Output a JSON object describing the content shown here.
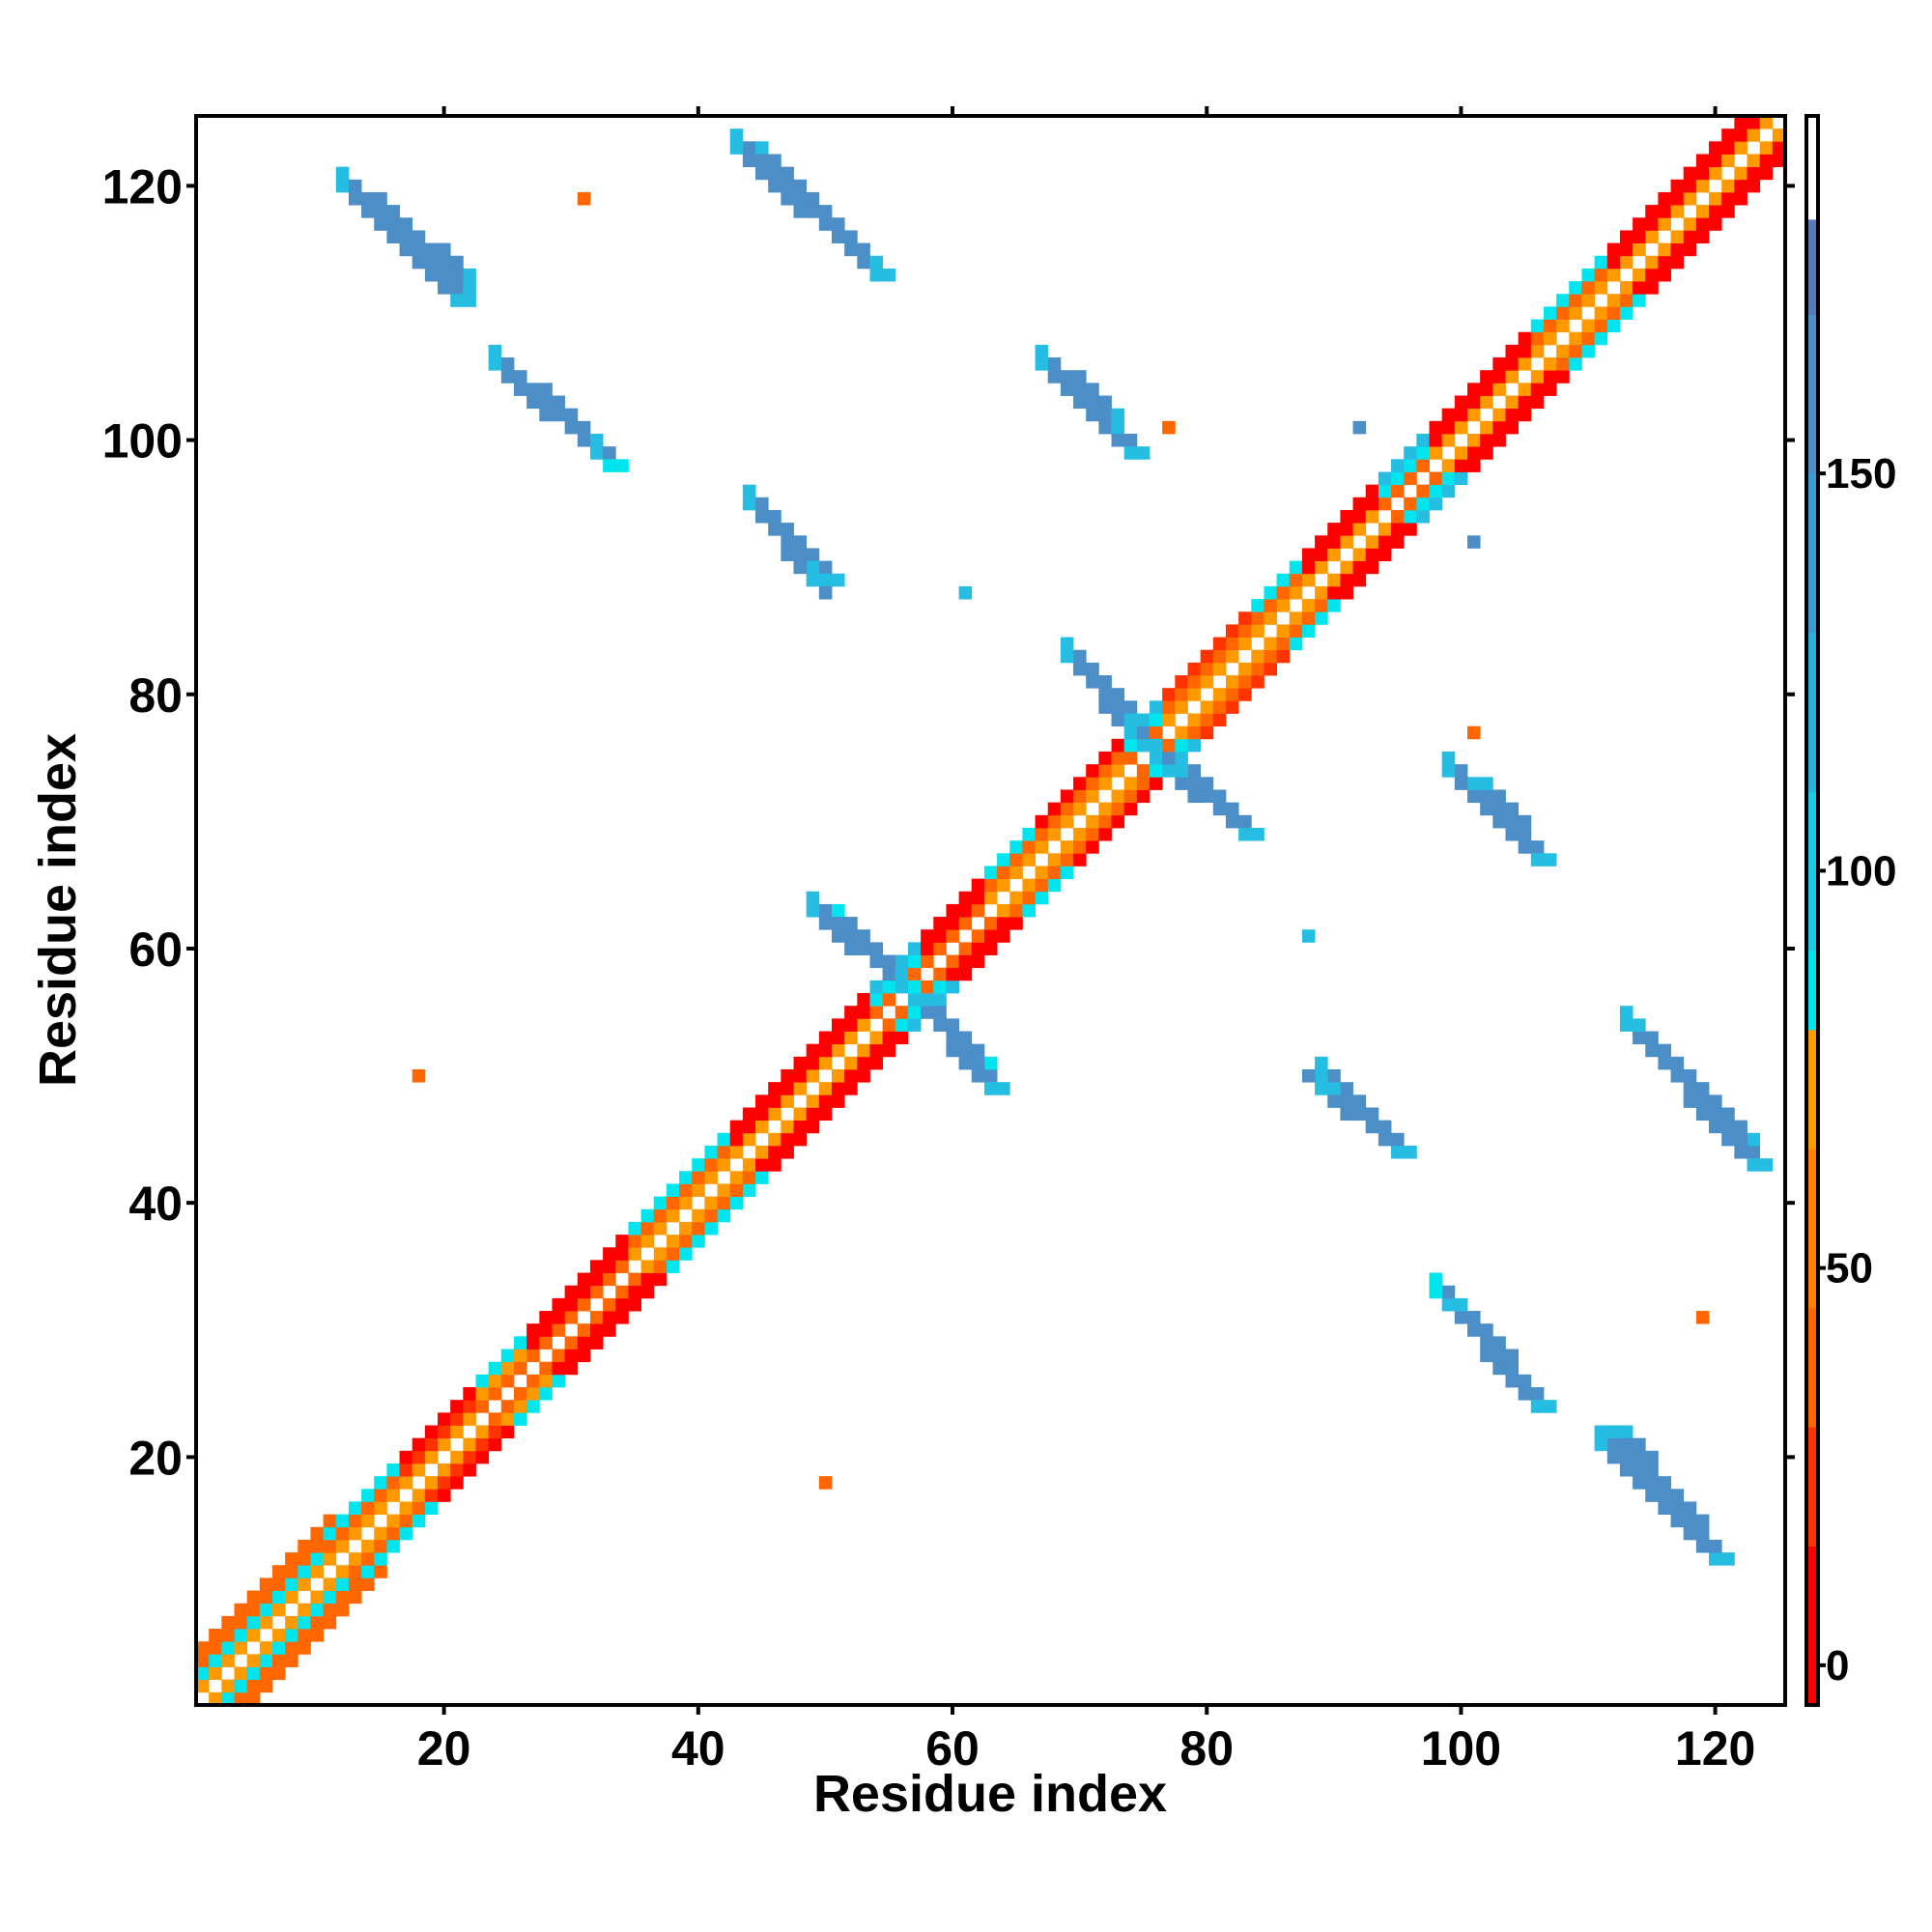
{
  "chart_data": {
    "type": "heatmap",
    "title": "",
    "xlabel": "Residue index",
    "ylabel": "Residue index",
    "xlim": [
      1,
      125
    ],
    "ylim": [
      1,
      125
    ],
    "x_ticks": [
      20,
      40,
      60,
      80,
      100,
      120
    ],
    "y_ticks": [
      20,
      40,
      60,
      80,
      100,
      120
    ],
    "grid": false,
    "legend": "right",
    "colorbar": {
      "ticks": [
        0,
        50,
        100,
        150
      ],
      "range": [
        -5,
        195
      ],
      "bands": [
        {
          "from": -5,
          "to": 15,
          "color": "#ff0000"
        },
        {
          "from": 15,
          "to": 30,
          "color": "#ff3300"
        },
        {
          "from": 30,
          "to": 45,
          "color": "#ff6600"
        },
        {
          "from": 45,
          "to": 65,
          "color": "#ff7f00"
        },
        {
          "from": 65,
          "to": 80,
          "color": "#ff9900"
        },
        {
          "from": 80,
          "to": 90,
          "color": "#00e5ee"
        },
        {
          "from": 90,
          "to": 110,
          "color": "#1bc8e8"
        },
        {
          "from": 110,
          "to": 130,
          "color": "#2ab0dc"
        },
        {
          "from": 130,
          "to": 150,
          "color": "#3c9ad4"
        },
        {
          "from": 150,
          "to": 170,
          "color": "#4b8ec8"
        },
        {
          "from": 170,
          "to": 182,
          "color": "#5779b8"
        },
        {
          "from": 182,
          "to": 195,
          "color": "#ffffff"
        }
      ]
    },
    "palette": {
      "red": "#ff0000",
      "red_orange": "#ff3300",
      "orange": "#ff6600",
      "light_orange": "#ff9900",
      "cyan": "#00e5ee",
      "light_blue": "#26bde2",
      "steel_blue": "#4b8ec8"
    },
    "diagonal_segments": [
      {
        "from": 1,
        "to": 11,
        "near": "light_orange",
        "mid": "cyan",
        "far": "orange",
        "width": 4
      },
      {
        "from": 11,
        "to": 17,
        "near": "light_orange",
        "mid": "orange",
        "far": "cyan",
        "width": 3
      },
      {
        "from": 17,
        "to": 23,
        "near": "light_orange",
        "mid": "red_orange",
        "far": "red",
        "width": 3
      },
      {
        "from": 23,
        "to": 27,
        "near": "orange",
        "mid": "light_orange",
        "far": "cyan",
        "width": 3
      },
      {
        "from": 27,
        "to": 35,
        "near": "orange",
        "mid": "red",
        "far": "red",
        "width": 3
      },
      {
        "from": 35,
        "to": 43,
        "near": "light_orange",
        "mid": "orange",
        "far": "cyan",
        "width": 3
      },
      {
        "from": 43,
        "to": 54,
        "near": "light_orange",
        "mid": "red",
        "far": "red",
        "width": 3
      },
      {
        "from": 54,
        "to": 58,
        "near": "orange",
        "mid": "cyan",
        "far": "light_blue",
        "width": 3
      },
      {
        "from": 58,
        "to": 63,
        "near": "orange",
        "mid": "red",
        "far": "red",
        "width": 3
      },
      {
        "from": 63,
        "to": 67,
        "near": "light_orange",
        "mid": "orange",
        "far": "cyan",
        "width": 3
      },
      {
        "from": 67,
        "to": 74,
        "near": "light_orange",
        "mid": "orange",
        "far": "red",
        "width": 3
      },
      {
        "from": 74,
        "to": 77,
        "near": "orange",
        "mid": "cyan",
        "far": "light_blue",
        "width": 3
      },
      {
        "from": 77,
        "to": 84,
        "near": "light_orange",
        "mid": "orange",
        "far": "red_orange",
        "width": 3
      },
      {
        "from": 84,
        "to": 88,
        "near": "light_orange",
        "mid": "orange",
        "far": "cyan",
        "width": 3
      },
      {
        "from": 88,
        "to": 94,
        "near": "light_orange",
        "mid": "red",
        "far": "red",
        "width": 3
      },
      {
        "from": 94,
        "to": 98,
        "near": "orange",
        "mid": "cyan",
        "far": "light_blue",
        "width": 3
      },
      {
        "from": 98,
        "to": 106,
        "near": "light_orange",
        "mid": "red",
        "far": "red",
        "width": 3
      },
      {
        "from": 106,
        "to": 112,
        "near": "light_orange",
        "mid": "orange",
        "far": "cyan",
        "width": 3
      },
      {
        "from": 112,
        "to": 125,
        "near": "light_orange",
        "mid": "red",
        "far": "red",
        "width": 3
      }
    ],
    "off_diagonal_bands": [
      {
        "x_start": 12,
        "y_start": 120,
        "x_end": 21,
        "y_end": 111,
        "color": "steel_blue",
        "edge": "light_blue",
        "width": 2
      },
      {
        "x_start": 25,
        "y_start": 105,
        "x_end": 33,
        "y_end": 98,
        "color": "steel_blue",
        "edge": "cyan",
        "width": 2
      },
      {
        "x_start": 44,
        "y_start": 123,
        "x_end": 54,
        "y_end": 113,
        "color": "steel_blue",
        "edge": "light_blue",
        "width": 2
      },
      {
        "x_start": 44,
        "y_start": 95,
        "x_end": 50,
        "y_end": 89,
        "color": "steel_blue",
        "edge": "light_blue",
        "width": 2
      },
      {
        "x_start": 50,
        "y_start": 63,
        "x_end": 56,
        "y_end": 57,
        "color": "steel_blue",
        "edge": "cyan",
        "width": 2
      },
      {
        "x_start": 57,
        "y_start": 56,
        "x_end": 63,
        "y_end": 49,
        "color": "steel_blue",
        "edge": "light_blue",
        "width": 2
      },
      {
        "x_start": 68,
        "y_start": 105,
        "x_end": 74,
        "y_end": 99,
        "color": "steel_blue",
        "edge": "light_blue",
        "width": 2
      },
      {
        "x_start": 70,
        "y_start": 82,
        "x_end": 75,
        "y_end": 76,
        "color": "steel_blue",
        "edge": "light_blue",
        "width": 2
      },
      {
        "x_start": 77,
        "y_start": 74,
        "x_end": 83,
        "y_end": 69,
        "color": "steel_blue",
        "edge": "light_blue",
        "width": 2
      },
      {
        "x_start": 89,
        "y_start": 49,
        "x_end": 95,
        "y_end": 44,
        "color": "steel_blue",
        "edge": "light_blue",
        "width": 2
      },
      {
        "x_start": 99,
        "y_start": 32,
        "x_end": 106,
        "y_end": 24,
        "color": "steel_blue",
        "edge": "light_blue",
        "width": 2
      },
      {
        "x_start": 101,
        "y_start": 73,
        "x_end": 106,
        "y_end": 67,
        "color": "steel_blue",
        "edge": "light_blue",
        "width": 2
      },
      {
        "x_start": 113,
        "y_start": 54,
        "x_end": 123,
        "y_end": 43,
        "color": "steel_blue",
        "edge": "light_blue",
        "width": 2
      },
      {
        "x_start": 112,
        "y_start": 22,
        "x_end": 120,
        "y_end": 12,
        "color": "steel_blue",
        "edge": "light_blue",
        "width": 2
      }
    ],
    "isolated_cells": [
      {
        "x": 31,
        "y": 119,
        "color": "orange"
      },
      {
        "x": 18,
        "y": 50,
        "color": "orange"
      },
      {
        "x": 50,
        "y": 18,
        "color": "orange"
      },
      {
        "x": 77,
        "y": 101,
        "color": "orange"
      },
      {
        "x": 101,
        "y": 77,
        "color": "orange"
      },
      {
        "x": 119,
        "y": 31,
        "color": "orange"
      },
      {
        "x": 92,
        "y": 101,
        "color": "steel_blue"
      },
      {
        "x": 101,
        "y": 92,
        "color": "steel_blue"
      },
      {
        "x": 61,
        "y": 88,
        "color": "light_blue"
      },
      {
        "x": 88,
        "y": 61,
        "color": "light_blue"
      },
      {
        "x": 50,
        "y": 88,
        "color": "steel_blue"
      },
      {
        "x": 88,
        "y": 50,
        "color": "steel_blue"
      }
    ]
  }
}
